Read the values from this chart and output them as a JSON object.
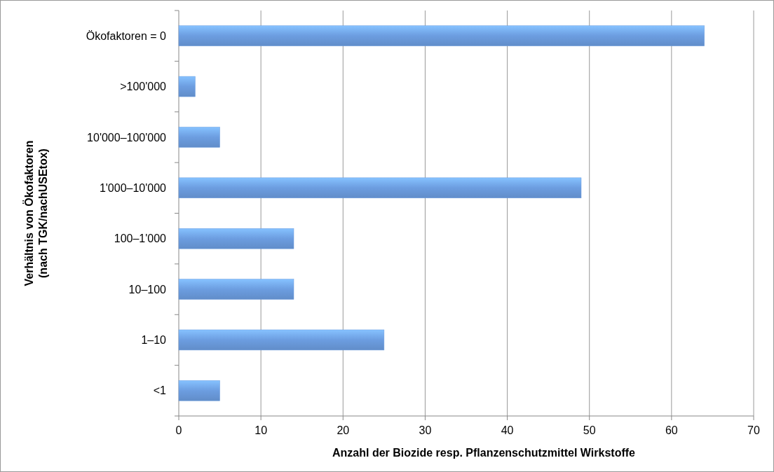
{
  "chart_data": {
    "type": "bar",
    "orientation": "horizontal",
    "xlabel": "Anzahl der Biozide resp. Pflanzenschutzmittel Wirkstoffe",
    "ylabel": "Verhältnis von Ökofaktoren\n(nach TGK/nachUSEtox)",
    "categories": [
      "Ökofaktoren = 0",
      ">100'000",
      "10'000–100'000",
      "1'000–10'000",
      "100–1'000",
      "10–100",
      "1–10",
      "<1"
    ],
    "values": [
      64,
      2,
      5,
      49,
      14,
      14,
      25,
      5
    ],
    "color": "#6c9de0",
    "xlim": [
      0,
      70
    ],
    "xticks": [
      0,
      10,
      20,
      30,
      40,
      50,
      60,
      70
    ],
    "grid": "x"
  }
}
